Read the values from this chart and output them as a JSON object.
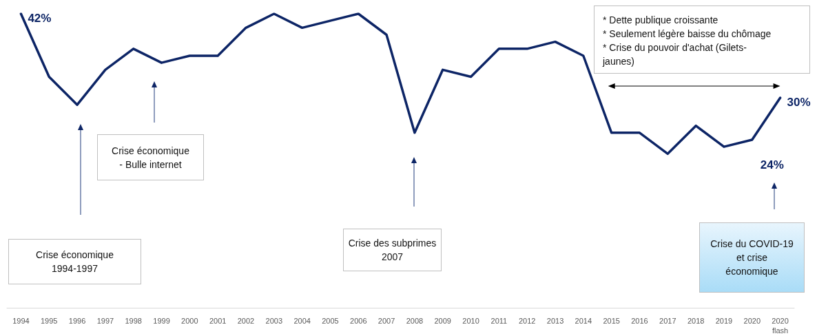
{
  "chart_data": {
    "type": "line",
    "categories": [
      "1994",
      "1995",
      "1996",
      "1997",
      "1998",
      "1999",
      "2000",
      "2001",
      "2002",
      "2003",
      "2004",
      "2005",
      "2006",
      "2007",
      "2008",
      "2009",
      "2010",
      "2011",
      "2012",
      "2013",
      "2014",
      "2015",
      "2016",
      "2017",
      "2018",
      "2019",
      "2020",
      "2020\nflash"
    ],
    "series": [
      {
        "color": "#0d2566",
        "values": [
          42,
          33,
          29,
          34,
          37,
          35,
          36,
          36,
          40,
          42,
          40,
          41,
          42,
          39,
          25,
          34,
          33,
          37,
          37,
          38,
          36,
          25,
          25,
          22,
          26,
          23,
          24,
          30
        ],
        "value_labels": [
          "42%",
          null,
          null,
          null,
          null,
          null,
          null,
          null,
          null,
          null,
          null,
          null,
          null,
          null,
          null,
          null,
          null,
          null,
          null,
          null,
          null,
          null,
          null,
          null,
          null,
          null,
          "24%",
          "30%"
        ]
      }
    ],
    "tick_labels": "x",
    "marker": "none",
    "line_style": "solid",
    "annotations": [
      "Crise économique\n1994-1997",
      "Crise économique\n- Bulle internet",
      "Crise des subprimes\n2007",
      "Crise du COVID-19\net crise\néconomique",
      "* Dette publique croissante\n* Seulement légère baisse du chômage\n* Crise du pouvoir d'achat (Gilets-\njaunes)"
    ]
  }
}
